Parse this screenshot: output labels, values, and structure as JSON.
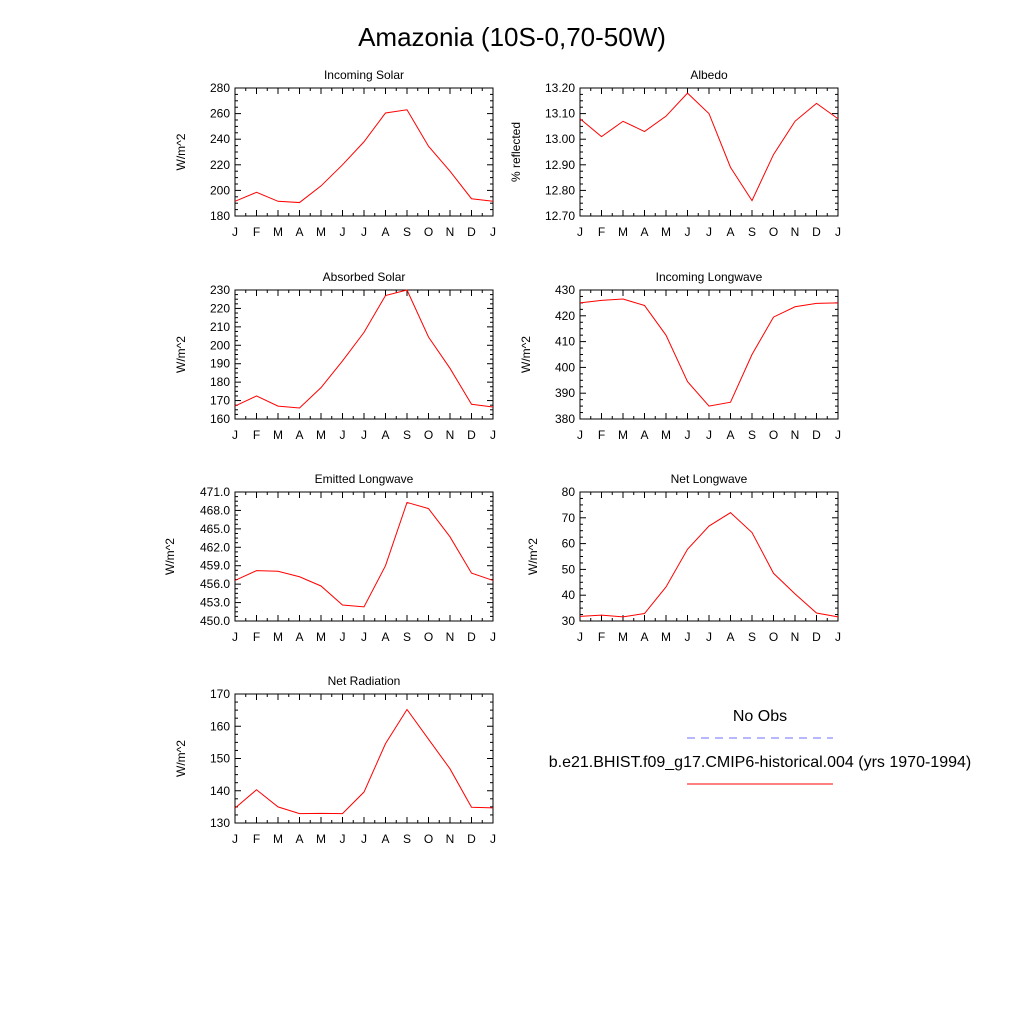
{
  "figure": {
    "title": "Amazonia (10S-0,70-50W)"
  },
  "legend": {
    "entries": [
      {
        "label": "No Obs",
        "color": "#6f6fff",
        "style": "dashed"
      },
      {
        "label": "b.e21.BHIST.f09_g17.CMIP6-historical.004 (yrs 1970-1994)",
        "color": "#ff0000",
        "style": "solid"
      }
    ]
  },
  "chart_data": [
    {
      "type": "line",
      "title": "Incoming Solar",
      "ylabel": "W/m^2",
      "x": [
        "J",
        "F",
        "M",
        "A",
        "M",
        "J",
        "J",
        "A",
        "S",
        "O",
        "N",
        "D",
        "J"
      ],
      "ylim": [
        180,
        280
      ],
      "yticks": [
        "180",
        "200",
        "220",
        "240",
        "260",
        "280"
      ],
      "series": [
        {
          "name": "b.e21.BHIST.f09_g17.CMIP6-historical.004 (yrs 1970-1994)",
          "values": [
            191.5,
            198.5,
            191.5,
            190.5,
            203.5,
            220.0,
            238.0,
            260.5,
            263.0,
            234.5,
            215.0,
            193.5,
            191.5
          ]
        }
      ]
    },
    {
      "type": "line",
      "title": "Albedo",
      "ylabel": "% reflected",
      "x": [
        "J",
        "F",
        "M",
        "A",
        "M",
        "J",
        "J",
        "A",
        "S",
        "O",
        "N",
        "D",
        "J"
      ],
      "ylim": [
        12.7,
        13.2
      ],
      "yticks": [
        "12.70",
        "12.80",
        "12.90",
        "13.00",
        "13.10",
        "13.20"
      ],
      "series": [
        {
          "name": "b.e21.BHIST.f09_g17.CMIP6-historical.004 (yrs 1970-1994)",
          "values": [
            13.08,
            13.01,
            13.07,
            13.03,
            13.09,
            13.18,
            13.1,
            12.89,
            12.76,
            12.94,
            13.07,
            13.14,
            13.08
          ]
        }
      ]
    },
    {
      "type": "line",
      "title": "Absorbed Solar",
      "ylabel": "W/m^2",
      "x": [
        "J",
        "F",
        "M",
        "A",
        "M",
        "J",
        "J",
        "A",
        "S",
        "O",
        "N",
        "D",
        "J"
      ],
      "ylim": [
        160,
        230
      ],
      "yticks": [
        "160",
        "170",
        "180",
        "190",
        "200",
        "210",
        "220",
        "230"
      ],
      "series": [
        {
          "name": "b.e21.BHIST.f09_g17.CMIP6-historical.004 (yrs 1970-1994)",
          "values": [
            167.0,
            172.5,
            167.0,
            166.0,
            177.0,
            191.5,
            207.0,
            227.0,
            230.0,
            204.5,
            187.5,
            168.0,
            166.5
          ]
        }
      ]
    },
    {
      "type": "line",
      "title": "Incoming Longwave",
      "ylabel": "W/m^2",
      "x": [
        "J",
        "F",
        "M",
        "A",
        "M",
        "J",
        "J",
        "A",
        "S",
        "O",
        "N",
        "D",
        "J"
      ],
      "ylim": [
        380,
        430
      ],
      "yticks": [
        "380",
        "390",
        "400",
        "410",
        "420",
        "430"
      ],
      "series": [
        {
          "name": "b.e21.BHIST.f09_g17.CMIP6-historical.004 (yrs 1970-1994)",
          "values": [
            425.0,
            426.0,
            426.5,
            424.0,
            412.5,
            394.5,
            385.0,
            386.5,
            405.0,
            419.5,
            423.5,
            424.8,
            425.0
          ]
        }
      ]
    },
    {
      "type": "line",
      "title": "Emitted Longwave",
      "ylabel": "W/m^2",
      "x": [
        "J",
        "F",
        "M",
        "A",
        "M",
        "J",
        "J",
        "A",
        "S",
        "O",
        "N",
        "D",
        "J"
      ],
      "ylim": [
        450.0,
        471.0
      ],
      "yticks": [
        "450.0",
        "453.0",
        "456.0",
        "459.0",
        "462.0",
        "465.0",
        "468.0",
        "471.0"
      ],
      "series": [
        {
          "name": "b.e21.BHIST.f09_g17.CMIP6-historical.004 (yrs 1970-1994)",
          "values": [
            456.6,
            458.2,
            458.1,
            457.2,
            455.7,
            452.6,
            452.3,
            459.0,
            469.3,
            468.3,
            463.7,
            457.8,
            456.6
          ]
        }
      ]
    },
    {
      "type": "line",
      "title": "Net Longwave",
      "ylabel": "W/m^2",
      "x": [
        "J",
        "F",
        "M",
        "A",
        "M",
        "J",
        "J",
        "A",
        "S",
        "O",
        "N",
        "D",
        "J"
      ],
      "ylim": [
        30,
        80
      ],
      "yticks": [
        "30",
        "40",
        "50",
        "60",
        "70",
        "80"
      ],
      "series": [
        {
          "name": "b.e21.BHIST.f09_g17.CMIP6-historical.004 (yrs 1970-1994)",
          "values": [
            31.8,
            32.3,
            31.6,
            32.9,
            43.2,
            57.8,
            66.8,
            72.0,
            64.3,
            48.5,
            40.5,
            33.1,
            31.6
          ]
        }
      ]
    },
    {
      "type": "line",
      "title": "Net Radiation",
      "ylabel": "W/m^2",
      "x": [
        "J",
        "F",
        "M",
        "A",
        "M",
        "J",
        "J",
        "A",
        "S",
        "O",
        "N",
        "D",
        "J"
      ],
      "ylim": [
        130,
        170
      ],
      "yticks": [
        "130",
        "140",
        "150",
        "160",
        "170"
      ],
      "series": [
        {
          "name": "b.e21.BHIST.f09_g17.CMIP6-historical.004 (yrs 1970-1994)",
          "values": [
            134.6,
            140.3,
            135.0,
            132.9,
            133.0,
            132.9,
            139.6,
            154.6,
            165.2,
            156.0,
            146.8,
            134.9,
            134.7
          ]
        }
      ]
    }
  ]
}
